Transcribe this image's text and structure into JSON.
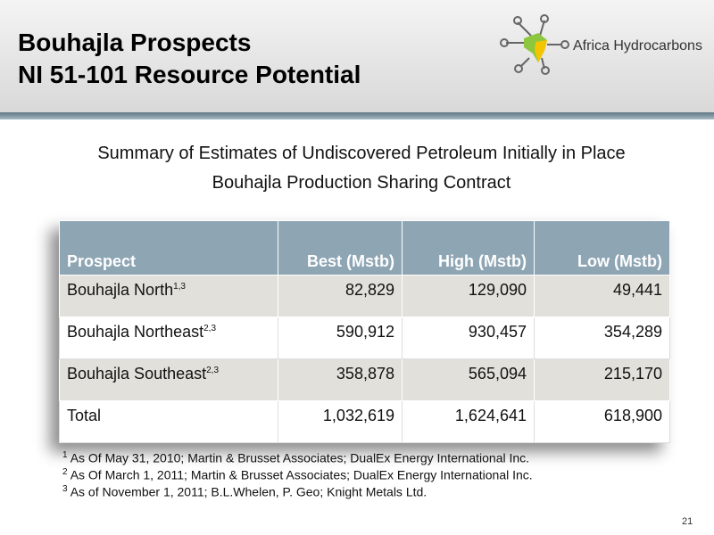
{
  "header": {
    "title_lines": [
      "Bouhajla Prospects",
      "NI 51-101 Resource Potential"
    ],
    "logo_text": "Africa Hydrocarbons"
  },
  "subtitle_lines": [
    "Summary of Estimates of Undiscovered Petroleum Initially in Place",
    "Bouhajla Production Sharing Contract"
  ],
  "table": {
    "columns": [
      "Prospect",
      "Best (Mstb)",
      "High (Mstb)",
      "Low (Mstb)"
    ],
    "rows": [
      {
        "name": "Bouhajla North",
        "note": "1,3",
        "cells": [
          "82,829",
          "129,090",
          "49,441"
        ]
      },
      {
        "name": "Bouhajla Northeast",
        "note": "2,3",
        "cells": [
          "590,912",
          "930,457",
          "354,289"
        ]
      },
      {
        "name": "Bouhajla Southeast",
        "note": "2,3",
        "cells": [
          "358,878",
          "565,094",
          "215,170"
        ]
      },
      {
        "name": "Total",
        "cells": [
          "1,032,619",
          "1,624,641",
          "618,900"
        ]
      }
    ]
  },
  "footnotes": [
    {
      "mark": "1",
      "text": "As Of May 31, 2010; Martin & Brusset Associates; DualEx Energy International Inc."
    },
    {
      "mark": "2",
      "text": "As Of March 1, 2011; Martin & Brusset Associates; DualEx Energy International Inc."
    },
    {
      "mark": "3",
      "text": "As of November 1, 2011; B.L.Whelen, P. Geo; Knight Metals Ltd."
    }
  ],
  "page_number": "21"
}
